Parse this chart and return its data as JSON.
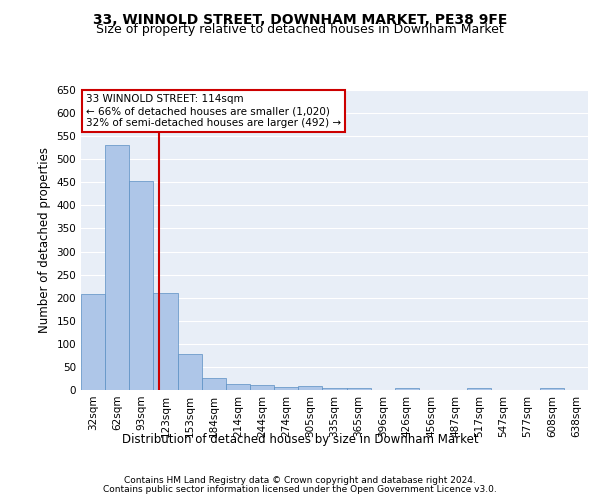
{
  "title1": "33, WINNOLD STREET, DOWNHAM MARKET, PE38 9FE",
  "title2": "Size of property relative to detached houses in Downham Market",
  "xlabel": "Distribution of detached houses by size in Downham Market",
  "ylabel": "Number of detached properties",
  "categories": [
    "32sqm",
    "62sqm",
    "93sqm",
    "123sqm",
    "153sqm",
    "184sqm",
    "214sqm",
    "244sqm",
    "274sqm",
    "305sqm",
    "335sqm",
    "365sqm",
    "396sqm",
    "426sqm",
    "456sqm",
    "487sqm",
    "517sqm",
    "547sqm",
    "577sqm",
    "608sqm",
    "638sqm"
  ],
  "values": [
    207,
    530,
    452,
    211,
    78,
    27,
    14,
    11,
    7,
    8,
    5,
    5,
    0,
    5,
    0,
    0,
    5,
    0,
    0,
    5,
    0
  ],
  "bar_color": "#aec6e8",
  "bar_edge_color": "#5a8fc3",
  "vline_x": 2.75,
  "vline_color": "#cc0000",
  "annotation_text": "33 WINNOLD STREET: 114sqm\n← 66% of detached houses are smaller (1,020)\n32% of semi-detached houses are larger (492) →",
  "annotation_box_color": "#ffffff",
  "annotation_box_edge": "#cc0000",
  "ylim": [
    0,
    650
  ],
  "yticks": [
    0,
    50,
    100,
    150,
    200,
    250,
    300,
    350,
    400,
    450,
    500,
    550,
    600,
    650
  ],
  "bg_color": "#e8eef7",
  "footer1": "Contains HM Land Registry data © Crown copyright and database right 2024.",
  "footer2": "Contains public sector information licensed under the Open Government Licence v3.0.",
  "title1_fontsize": 10,
  "title2_fontsize": 9,
  "xlabel_fontsize": 8.5,
  "ylabel_fontsize": 8.5,
  "tick_fontsize": 7.5,
  "footer_fontsize": 6.5
}
